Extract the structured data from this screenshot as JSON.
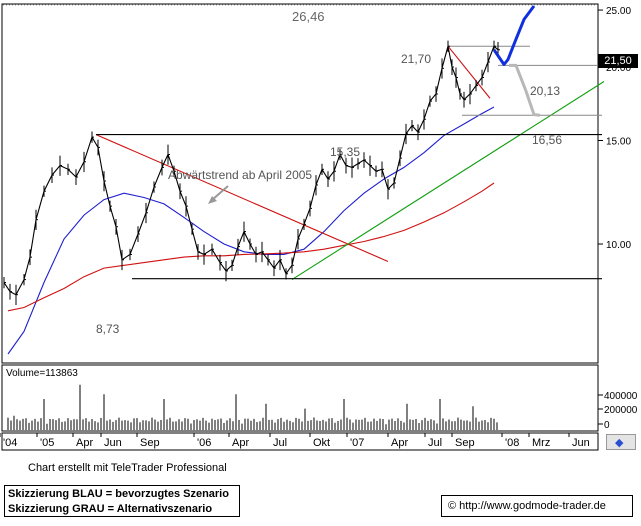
{
  "chart_data": {
    "type": "line",
    "title": "",
    "xlabel": "",
    "ylabel": "",
    "x_ticks": [
      "'04",
      "'05",
      "Apr",
      "Jun",
      "Sep",
      "'06",
      "Apr",
      "Jul",
      "Okt",
      "'07",
      "Apr",
      "Jul",
      "Sep",
      "'08",
      "Mrz",
      "Jun"
    ],
    "y_ticks": [
      "25.00",
      "20.00",
      "15.00",
      "10.00"
    ],
    "volume_ticks": [
      "400000",
      "200000",
      "0"
    ],
    "ylim": [
      6.3,
      25.5
    ],
    "log_scale": true,
    "grid": false,
    "series": [
      {
        "role": "price",
        "color": "#000000",
        "values": [
          [
            0,
            8.6
          ],
          [
            6,
            8.3
          ],
          [
            12,
            8.2
          ],
          [
            20,
            8.7
          ],
          [
            26,
            9.5
          ],
          [
            32,
            11.0
          ],
          [
            40,
            12.3
          ],
          [
            48,
            13.1
          ],
          [
            56,
            13.6
          ],
          [
            64,
            13.4
          ],
          [
            72,
            13.0
          ],
          [
            80,
            13.8
          ],
          [
            88,
            15.2
          ],
          [
            94,
            14.6
          ],
          [
            100,
            12.8
          ],
          [
            106,
            11.6
          ],
          [
            112,
            10.7
          ],
          [
            118,
            9.4
          ],
          [
            126,
            9.6
          ],
          [
            134,
            10.4
          ],
          [
            142,
            11.3
          ],
          [
            150,
            12.5
          ],
          [
            158,
            13.5
          ],
          [
            164,
            14.2
          ],
          [
            170,
            13.3
          ],
          [
            176,
            12.3
          ],
          [
            182,
            11.6
          ],
          [
            188,
            10.6
          ],
          [
            194,
            9.7
          ],
          [
            200,
            9.6
          ],
          [
            208,
            9.8
          ],
          [
            216,
            9.3
          ],
          [
            222,
            9.0
          ],
          [
            228,
            9.2
          ],
          [
            234,
            9.9
          ],
          [
            240,
            10.5
          ],
          [
            246,
            10.0
          ],
          [
            252,
            9.6
          ],
          [
            258,
            9.7
          ],
          [
            264,
            9.4
          ],
          [
            270,
            9.1
          ],
          [
            276,
            9.4
          ],
          [
            282,
            8.9
          ],
          [
            288,
            9.2
          ],
          [
            294,
            10.2
          ],
          [
            300,
            10.8
          ],
          [
            306,
            11.5
          ],
          [
            312,
            12.6
          ],
          [
            318,
            13.4
          ],
          [
            324,
            12.9
          ],
          [
            330,
            13.3
          ],
          [
            336,
            14.2
          ],
          [
            342,
            13.6
          ],
          [
            348,
            13.5
          ],
          [
            354,
            13.7
          ],
          [
            360,
            13.9
          ],
          [
            366,
            13.6
          ],
          [
            372,
            13.3
          ],
          [
            378,
            13.4
          ],
          [
            384,
            12.4
          ],
          [
            390,
            12.7
          ],
          [
            396,
            14.0
          ],
          [
            402,
            15.4
          ],
          [
            408,
            15.9
          ],
          [
            414,
            15.5
          ],
          [
            420,
            16.3
          ],
          [
            426,
            17.5
          ],
          [
            432,
            18.0
          ],
          [
            438,
            19.9
          ],
          [
            444,
            21.7
          ],
          [
            448,
            20.0
          ],
          [
            452,
            19.2
          ],
          [
            456,
            18.0
          ],
          [
            460,
            17.6
          ],
          [
            466,
            18.0
          ],
          [
            472,
            18.6
          ],
          [
            478,
            19.2
          ],
          [
            484,
            20.4
          ],
          [
            490,
            21.7
          ],
          [
            494,
            21.4
          ]
        ]
      },
      {
        "role": "ma-short",
        "color": "#1f1fd0",
        "values": [
          [
            4,
            6.5
          ],
          [
            20,
            7.1
          ],
          [
            40,
            8.6
          ],
          [
            60,
            10.2
          ],
          [
            80,
            11.2
          ],
          [
            100,
            11.9
          ],
          [
            120,
            12.2
          ],
          [
            140,
            12.0
          ],
          [
            160,
            11.7
          ],
          [
            180,
            11.1
          ],
          [
            200,
            10.5
          ],
          [
            220,
            10.0
          ],
          [
            240,
            9.7
          ],
          [
            260,
            9.6
          ],
          [
            280,
            9.6
          ],
          [
            300,
            9.8
          ],
          [
            320,
            10.5
          ],
          [
            340,
            11.4
          ],
          [
            360,
            12.2
          ],
          [
            380,
            12.9
          ],
          [
            400,
            13.5
          ],
          [
            420,
            14.3
          ],
          [
            440,
            15.3
          ],
          [
            460,
            16.0
          ],
          [
            476,
            16.6
          ],
          [
            490,
            17.1
          ]
        ]
      },
      {
        "role": "ma-long",
        "color": "#d01010",
        "values": [
          [
            4,
            7.7
          ],
          [
            20,
            7.8
          ],
          [
            40,
            8.1
          ],
          [
            60,
            8.4
          ],
          [
            80,
            8.8
          ],
          [
            100,
            9.1
          ],
          [
            120,
            9.2
          ],
          [
            140,
            9.3
          ],
          [
            160,
            9.4
          ],
          [
            180,
            9.5
          ],
          [
            200,
            9.55
          ],
          [
            220,
            9.55
          ],
          [
            240,
            9.6
          ],
          [
            260,
            9.62
          ],
          [
            280,
            9.65
          ],
          [
            300,
            9.7
          ],
          [
            320,
            9.8
          ],
          [
            340,
            9.95
          ],
          [
            360,
            10.1
          ],
          [
            380,
            10.3
          ],
          [
            400,
            10.55
          ],
          [
            420,
            10.9
          ],
          [
            440,
            11.3
          ],
          [
            460,
            11.8
          ],
          [
            478,
            12.3
          ],
          [
            490,
            12.7
          ]
        ]
      }
    ],
    "trendlines": [
      {
        "color": "#d01010",
        "from": [
          92,
          15.35
        ],
        "to": [
          384,
          9.34
        ]
      },
      {
        "color": "#10a010",
        "from": [
          288,
          8.7
        ],
        "to": [
          600,
          18.9
        ]
      },
      {
        "color": "#000000",
        "from": [
          92,
          15.35
        ],
        "to": [
          598,
          15.35
        ]
      },
      {
        "color": "#000000",
        "from": [
          128,
          8.73
        ],
        "to": [
          598,
          8.73
        ]
      },
      {
        "color": "#d01010",
        "from": [
          444,
          21.7
        ],
        "to": [
          486,
          17.7
        ]
      },
      {
        "color": "#888888",
        "from": [
          444,
          21.7
        ],
        "to": [
          526,
          21.7
        ]
      },
      {
        "color": "#888888",
        "from": [
          494,
          20.13
        ],
        "to": [
          598,
          20.13
        ]
      },
      {
        "color": "#888888",
        "from": [
          458,
          16.56
        ],
        "to": [
          598,
          16.56
        ]
      }
    ],
    "scenario_blue": [
      [
        490,
        21.4
      ],
      [
        500,
        20.2
      ],
      [
        504,
        20.6
      ],
      [
        512,
        22.3
      ],
      [
        520,
        24.1
      ],
      [
        530,
        25.4
      ]
    ],
    "scenario_grey": [
      [
        505,
        20.13
      ],
      [
        512,
        20.13
      ],
      [
        522,
        18.2
      ],
      [
        530,
        16.6
      ],
      [
        536,
        16.56
      ]
    ],
    "volume_peaks": [
      [
        10,
        120000
      ],
      [
        40,
        260000
      ],
      [
        75,
        380000
      ],
      [
        100,
        300000
      ],
      [
        160,
        260000
      ],
      [
        232,
        300000
      ],
      [
        262,
        220000
      ],
      [
        300,
        180000
      ],
      [
        340,
        260000
      ],
      [
        404,
        220000
      ],
      [
        436,
        260000
      ],
      [
        470,
        200000
      ]
    ]
  },
  "annotations": {
    "top_value": "26,46",
    "level_high": "21,70",
    "level_mid": "20,13",
    "level_support": "15,35",
    "level_alt": "16,56",
    "level_low": "8,73",
    "trend_text": "Abwärtstrend ab April 2005"
  },
  "price_tag": "21,50",
  "volume_label": "Volume=113863",
  "credit": "Chart erstellt mit TeleTrader Professional",
  "legend": {
    "blue": "Skizzierung BLAU = bevorzugtes Szenario",
    "grey": "Skizzierung GRAU = Alternativszenario"
  },
  "source": "© http://www.godmode-trader.de",
  "nav_button": "◆"
}
